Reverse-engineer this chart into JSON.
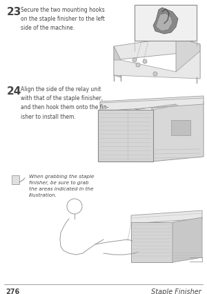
{
  "page_number": "276",
  "chapter_title": "Staple Finisher",
  "background_color": "#ffffff",
  "step23_number": "23",
  "step23_text": "Secure the two mounting hooks\non the staple finisher to the left\nside of the machine.",
  "step24_number": "24",
  "step24_text": "Align the side of the relay unit\nwith that of the staple finisher,\nand then hook them onto the fin-\nisher to install them.",
  "note_text": "When grabbing the staple\nfinisher, be sure to grab\nthe areas indicated in the\nillustration.",
  "text_color": "#444444",
  "light_gray": "#e8e8e8",
  "mid_gray": "#cccccc",
  "dark_gray": "#999999",
  "line_gray": "#aaaaaa",
  "footer_line_color": "#777777"
}
